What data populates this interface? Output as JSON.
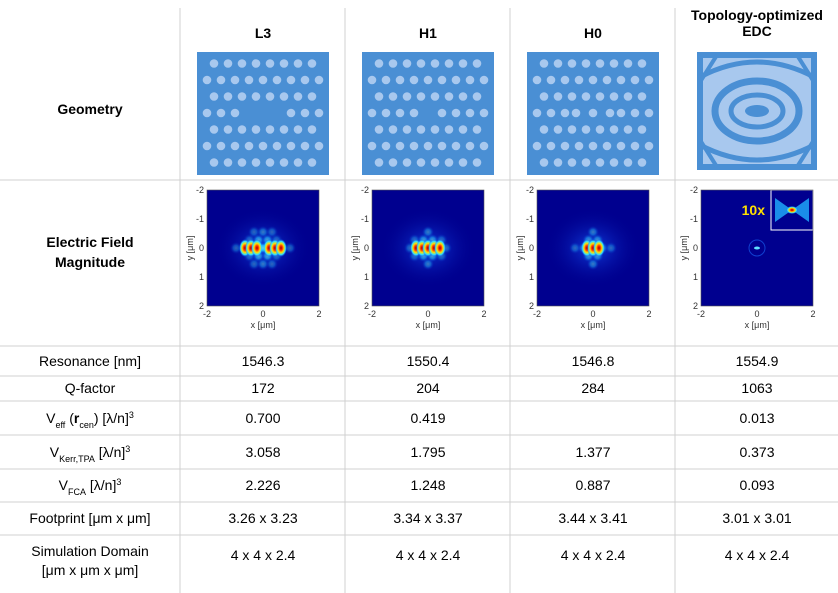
{
  "header": {
    "columns": [
      [
        "L3"
      ],
      [
        "H1"
      ],
      [
        "H0"
      ],
      [
        "Topology-optimized",
        "EDC"
      ]
    ]
  },
  "geometry_row": {
    "label": "Geometry"
  },
  "field_row": {
    "label": [
      "Electric Field",
      "Magnitude"
    ],
    "xlabel": "x [μm]",
    "ylabel": "y [μm]",
    "yticks": [
      "-2",
      "-1",
      "0",
      "1",
      "2"
    ],
    "xticks": [
      "-2",
      "0",
      "2"
    ],
    "inset_label": "10x"
  },
  "table": {
    "rows": [
      {
        "label": "Resonance [nm]",
        "values": [
          "1546.3",
          "1550.4",
          "1546.8",
          "1554.9"
        ]
      },
      {
        "label": "Q-factor",
        "values": [
          "172",
          "204",
          "284",
          "1063"
        ]
      },
      {
        "label": [
          "V",
          "eff",
          " (",
          "r",
          "cen",
          ") [λ/n]",
          "3"
        ],
        "values": [
          "0.700",
          "0.419",
          null,
          "0.013"
        ]
      },
      {
        "label": [
          "V",
          "Kerr,TPA",
          " [λ/n]",
          "3"
        ],
        "values": [
          "3.058",
          "1.795",
          "1.377",
          "0.373"
        ]
      },
      {
        "label": [
          "V",
          "FCA",
          " [λ/n]",
          "3"
        ],
        "values": [
          "2.226",
          "1.248",
          "0.887",
          "0.093"
        ]
      },
      {
        "label": "Footprint [μm x μm]",
        "values": [
          "3.26 x 3.23",
          "3.34 x 3.37",
          "3.44 x 3.41",
          "3.01 x 3.01"
        ]
      },
      {
        "label": [
          "Simulation Domain",
          "[μm x μm x μm]"
        ],
        "values": [
          "4 x 4 x 2.4",
          "4 x 4 x 2.4",
          "4 x 4 x 2.4",
          "4 x 4 x 2.4"
        ]
      }
    ]
  }
}
